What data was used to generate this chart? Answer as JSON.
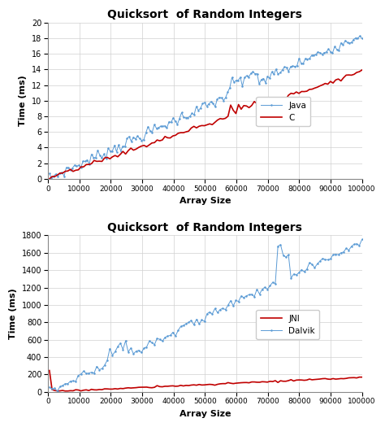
{
  "title": "Quicksort  of Random Integers",
  "xlabel": "Array Size",
  "ylabel": "Time (ms)",
  "chart1": {
    "ylim": [
      0,
      20
    ],
    "yticks": [
      0,
      2,
      4,
      6,
      8,
      10,
      12,
      14,
      16,
      18,
      20
    ],
    "xlim": [
      0,
      100000
    ],
    "xticks": [
      0,
      10000,
      20000,
      30000,
      40000,
      50000,
      60000,
      70000,
      80000,
      90000,
      100000
    ],
    "java_color": "#5B9BD5",
    "c_color": "#C00000",
    "legend_labels": [
      "Java",
      "C"
    ]
  },
  "chart2": {
    "ylim": [
      0,
      1800
    ],
    "yticks": [
      0,
      200,
      400,
      600,
      800,
      1000,
      1200,
      1400,
      1600,
      1800
    ],
    "xlim": [
      0,
      100000
    ],
    "xticks": [
      0,
      10000,
      20000,
      30000,
      40000,
      50000,
      60000,
      70000,
      80000,
      90000,
      100000
    ],
    "jni_color": "#C00000",
    "dalvik_color": "#5B9BD5",
    "legend_labels": [
      "JNI",
      "Dalvik"
    ]
  }
}
